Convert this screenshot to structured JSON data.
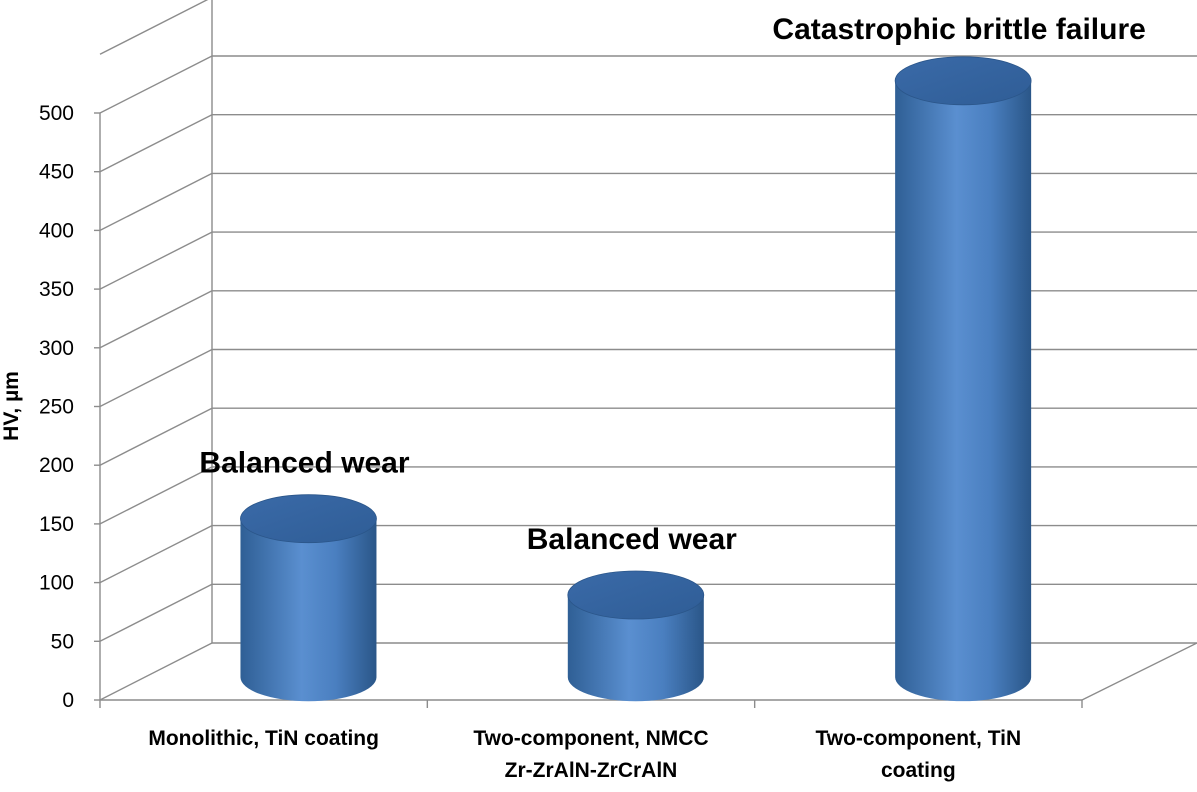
{
  "chart_data": {
    "type": "bar",
    "ylabel": "HV, µm",
    "xlabel": "",
    "ylim": [
      0,
      500
    ],
    "yticks": [
      0,
      50,
      100,
      150,
      200,
      250,
      300,
      350,
      400,
      450,
      500
    ],
    "grid": true,
    "bar_color": "#4f81bd",
    "categories": [
      [
        "Monolithic, TiN coating"
      ],
      [
        "Two-component, NMCC",
        "Zr-ZrAlN-ZrCrAlN"
      ],
      [
        "Two-component, TiN",
        "coating"
      ]
    ],
    "values": [
      135,
      70,
      508
    ],
    "annotations": [
      "Balanced wear",
      "Balanced wear",
      "Catastrophic brittle failure"
    ]
  }
}
